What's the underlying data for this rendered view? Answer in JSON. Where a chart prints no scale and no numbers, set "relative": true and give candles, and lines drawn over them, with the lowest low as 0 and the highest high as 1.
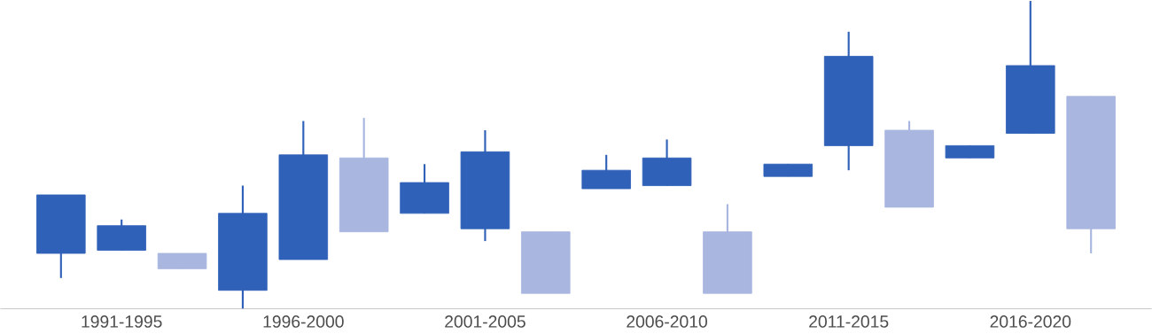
{
  "chart_data": {
    "type": "candlestick",
    "relative": true,
    "categories": [
      null,
      "1991-1995",
      null,
      null,
      "1996-2000",
      null,
      null,
      "2001-2005",
      null,
      null,
      "2006-2010",
      null,
      null,
      "2011-2015",
      null,
      null,
      "2016-2020",
      null
    ],
    "ohlc": [
      [
        0.18,
        0.37,
        0.1,
        0.37
      ],
      [
        0.19,
        0.29,
        0.19,
        0.27
      ],
      [
        0.18,
        0.18,
        0.13,
        0.13
      ],
      [
        0.06,
        0.4,
        0,
        0.31
      ],
      [
        0.16,
        0.61,
        0.16,
        0.5
      ],
      [
        0.49,
        0.62,
        0.25,
        0.25
      ],
      [
        0.31,
        0.47,
        0.31,
        0.41
      ],
      [
        0.26,
        0.58,
        0.22,
        0.51
      ],
      [
        0.25,
        0.25,
        0.05,
        0.05
      ],
      [
        0.39,
        0.5,
        0.39,
        0.45
      ],
      [
        0.4,
        0.55,
        0.4,
        0.49
      ],
      [
        0.25,
        0.34,
        0.05,
        0.05
      ],
      [
        0.43,
        0.47,
        0.43,
        0.47
      ],
      [
        0.53,
        0.9,
        0.45,
        0.82
      ],
      [
        0.58,
        0.61,
        0.33,
        0.33
      ],
      [
        0.49,
        0.53,
        0.49,
        0.53
      ],
      [
        0.57,
        1,
        0.57,
        0.79
      ],
      [
        0.69,
        0.69,
        0.18,
        0.26
      ]
    ],
    "colors": [
      "#3061b8",
      "#3061b8",
      "#a9b6e0",
      "#3061b8",
      "#3061b8",
      "#a9b6e0",
      "#3061b8",
      "#3061b8",
      "#a9b6e0",
      "#3061b8",
      "#3061b8",
      "#a9b6e0",
      "#3061b8",
      "#3061b8",
      "#a9b6e0",
      "#3061b8",
      "#3061b8",
      "#a9b6e0"
    ]
  }
}
